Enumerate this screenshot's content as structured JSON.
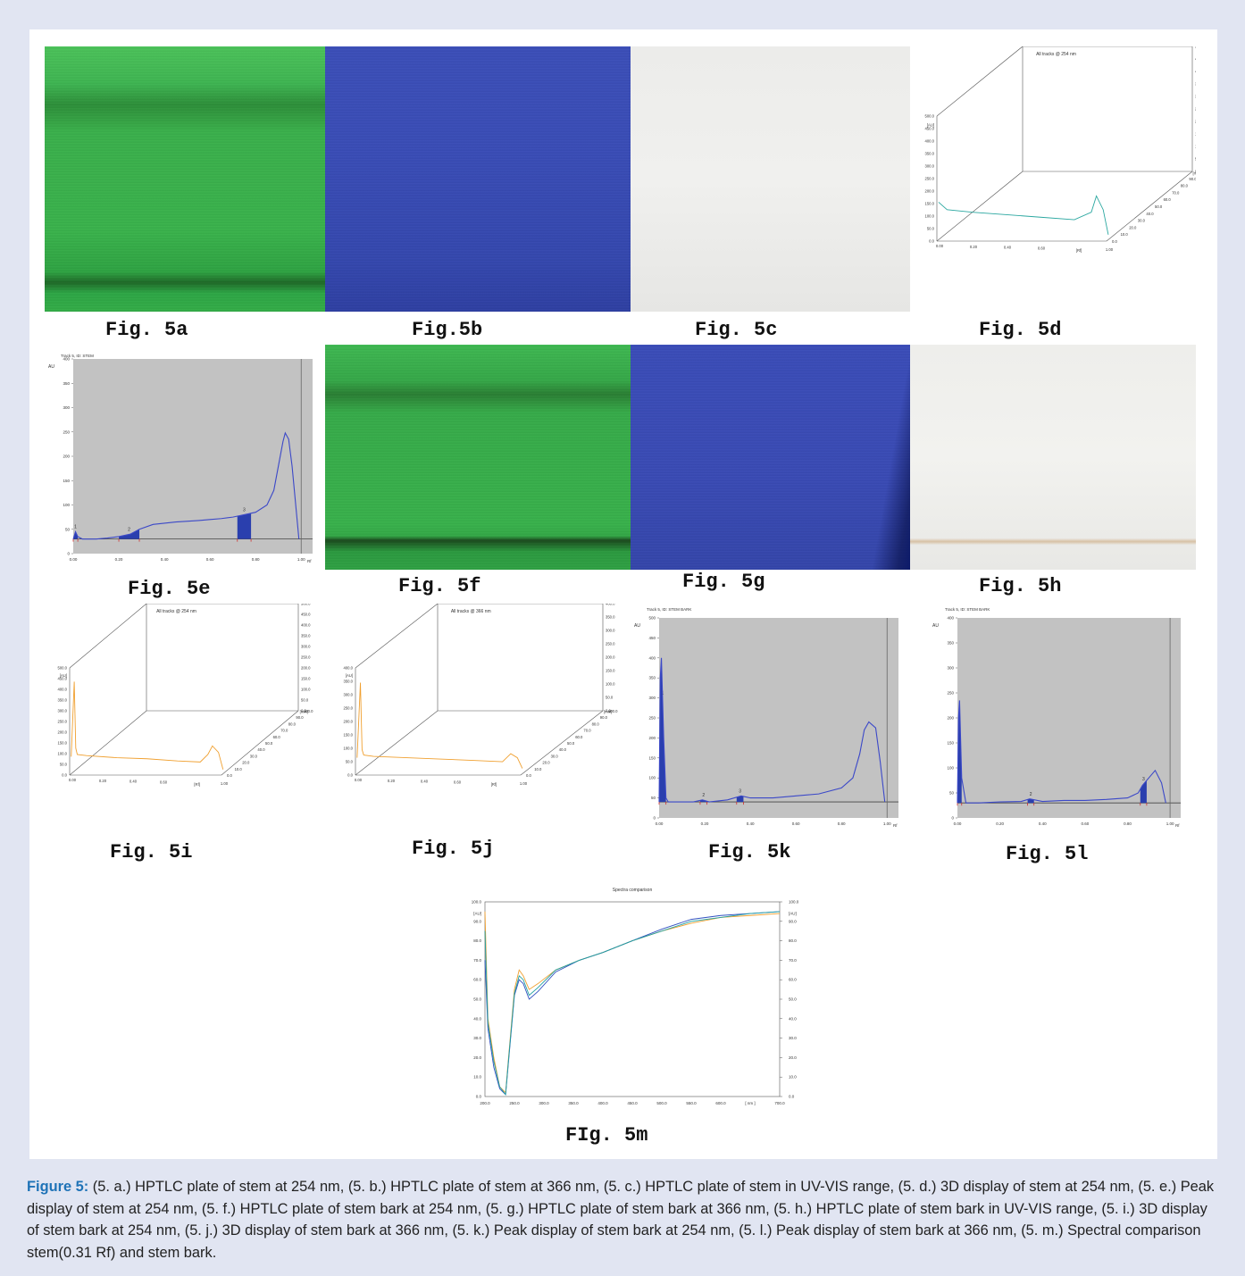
{
  "figure_labels": {
    "a": "Fig. 5a",
    "b": "Fig.5b",
    "c": "Fig. 5c",
    "d": "Fig. 5d",
    "e": "Fig. 5e",
    "f": "Fig. 5f",
    "g": "Fig. 5g",
    "h": "Fig. 5h",
    "i": "Fig. 5i",
    "j": "Fig. 5j",
    "k": "Fig. 5k",
    "l": "Fig. 5l",
    "m": "FIg. 5m"
  },
  "caption": {
    "label": "Figure 5:",
    "text": " (5. a.) HPTLC plate of stem at 254 nm, (5. b.) HPTLC plate of stem at 366 nm, (5. c.) HPTLC plate of stem in UV-VIS range, (5. d.) 3D display of stem at 254 nm, (5. e.) Peak display of stem at 254 nm, (5. f.) HPTLC plate of stem bark at 254 nm, (5. g.) HPTLC plate of stem bark at 366 nm, (5. h.) HPTLC plate of stem bark in UV-VIS range, (5. i.) 3D display of stem bark at 254 nm, (5. j.) 3D display of stem bark at 366 nm, (5. k.) Peak display of stem bark at 254 nm, (5. l.) Peak display of stem bark at 366 nm, (5. m.) Spectral comparison stem(0.31 Rf) and stem bark."
  },
  "chart_data": [
    {
      "id": "5d",
      "type": "line",
      "title": "All tracks @ 254 nm",
      "xlabel": "[Rf]",
      "ylabel": "[AU]",
      "zlabel": "[mm]",
      "x_ticks": [
        "0.00",
        "0.20",
        "0.40",
        "0.60",
        "1.00"
      ],
      "y_ticks": [
        "0.0",
        "50.0",
        "100.0",
        "150.0",
        "200.0",
        "250.0",
        "300.0",
        "350.0",
        "400.0",
        "450.0",
        "500.0"
      ],
      "z_ticks": [
        "0.0",
        "10.0",
        "20.0",
        "30.0",
        "40.0",
        "50.0",
        "60.0",
        "70.0",
        "80.0",
        "90.0",
        "100.0"
      ],
      "series": [
        {
          "color": "#2aa7a0",
          "x": [
            0.0,
            0.05,
            0.2,
            0.4,
            0.6,
            0.8,
            0.9,
            0.93,
            0.97,
            1.0
          ],
          "y": [
            150,
            120,
            110,
            100,
            90,
            80,
            110,
            175,
            120,
            20
          ]
        }
      ]
    },
    {
      "id": "5e",
      "type": "line",
      "title": "Track 5, ID: STEM",
      "xlabel": "Rf",
      "ylabel": "AU",
      "xlim": [
        0,
        1.05
      ],
      "ylim": [
        0,
        400
      ],
      "x_ticks": [
        "0.00",
        "0.20",
        "0.40",
        "0.60",
        "0.80",
        "1.00"
      ],
      "y_ticks": [
        "400",
        "350",
        "300",
        "250",
        "200",
        "150",
        "100",
        "50",
        "0"
      ],
      "peaks": [
        "1",
        "2",
        "3"
      ],
      "x": [
        0.0,
        0.01,
        0.02,
        0.04,
        0.1,
        0.15,
        0.2,
        0.25,
        0.29,
        0.35,
        0.45,
        0.55,
        0.6,
        0.65,
        0.7,
        0.75,
        0.8,
        0.85,
        0.88,
        0.9,
        0.92,
        0.93,
        0.945,
        0.96,
        0.98,
        0.99
      ],
      "y": [
        30,
        45,
        35,
        30,
        30,
        32,
        35,
        40,
        50,
        60,
        65,
        68,
        70,
        72,
        75,
        80,
        85,
        100,
        130,
        180,
        230,
        248,
        235,
        180,
        80,
        30
      ]
    },
    {
      "id": "5i",
      "type": "line",
      "title": "All tracks @ 254 nm",
      "xlabel": "[Rf]",
      "ylabel": "[AU]",
      "zlabel": "[mm]",
      "x_ticks": [
        "0.00",
        "0.20",
        "0.40",
        "0.60",
        "1.00"
      ],
      "y_ticks": [
        "0.0",
        "50.0",
        "100.0",
        "150.0",
        "200.0",
        "250.0",
        "300.0",
        "350.0",
        "400.0",
        "450.0",
        "500.0"
      ],
      "z_ticks": [
        "0.0",
        "10.0",
        "20.0",
        "30.0",
        "40.0",
        "50.0",
        "60.0",
        "70.0",
        "80.0",
        "90.0",
        "100.0"
      ],
      "series": [
        {
          "color": "#f0a030",
          "x": [
            0.0,
            0.02,
            0.03,
            0.04,
            0.1,
            0.3,
            0.5,
            0.7,
            0.85,
            0.9,
            0.93,
            0.97,
            1.0
          ],
          "y": [
            80,
            430,
            120,
            90,
            85,
            75,
            70,
            60,
            55,
            90,
            130,
            100,
            20
          ]
        }
      ]
    },
    {
      "id": "5j",
      "type": "line",
      "title": "All tracks @ 366 nm",
      "xlabel": "[Rf]",
      "ylabel": "[AU]",
      "zlabel": "[mm]",
      "x_ticks": [
        "0.00",
        "0.20",
        "0.40",
        "0.60",
        "1.00"
      ],
      "y_ticks": [
        "0.0",
        "50.0",
        "100.0",
        "150.0",
        "200.0",
        "250.0",
        "300.0",
        "350.0",
        "400.0"
      ],
      "z_ticks": [
        "0.0",
        "10.0",
        "20.0",
        "30.0",
        "40.0",
        "50.0",
        "60.0",
        "70.0",
        "80.0",
        "90.0",
        "100.0"
      ],
      "series": [
        {
          "color": "#f0a030",
          "x": [
            0.0,
            0.02,
            0.03,
            0.04,
            0.1,
            0.3,
            0.5,
            0.7,
            0.88,
            0.93,
            0.97,
            1.0
          ],
          "y": [
            60,
            340,
            90,
            70,
            65,
            60,
            55,
            50,
            45,
            75,
            60,
            20
          ]
        }
      ]
    },
    {
      "id": "5k",
      "type": "line",
      "title": "Track 5, ID: STEM BARK",
      "xlabel": "Rf",
      "ylabel": "AU",
      "xlim": [
        0,
        1.05
      ],
      "ylim": [
        0,
        500
      ],
      "x_ticks": [
        "0.00",
        "0.20",
        "0.40",
        "0.60",
        "0.80",
        "1.00"
      ],
      "y_ticks": [
        "500",
        "450",
        "400",
        "350",
        "300",
        "250",
        "200",
        "150",
        "100",
        "50",
        "0"
      ],
      "peaks": [
        "1",
        "2",
        "3"
      ],
      "x": [
        0.0,
        0.005,
        0.01,
        0.02,
        0.03,
        0.04,
        0.08,
        0.15,
        0.19,
        0.22,
        0.3,
        0.36,
        0.4,
        0.5,
        0.6,
        0.7,
        0.8,
        0.85,
        0.88,
        0.9,
        0.92,
        0.95,
        0.97,
        0.99
      ],
      "y": [
        40,
        350,
        400,
        200,
        50,
        40,
        40,
        40,
        45,
        40,
        45,
        55,
        50,
        50,
        55,
        60,
        75,
        100,
        160,
        220,
        240,
        225,
        140,
        40
      ]
    },
    {
      "id": "5l",
      "type": "line",
      "title": "Track 5, ID: STEM BARK",
      "xlabel": "Rf",
      "ylabel": "AU",
      "xlim": [
        0,
        1.05
      ],
      "ylim": [
        0,
        400
      ],
      "x_ticks": [
        "0.00",
        "0.20",
        "0.40",
        "0.60",
        "0.80",
        "1.00"
      ],
      "y_ticks": [
        "400",
        "350",
        "300",
        "250",
        "200",
        "150",
        "100",
        "50",
        "0"
      ],
      "peaks": [
        "2",
        "3"
      ],
      "x": [
        0.0,
        0.005,
        0.01,
        0.02,
        0.04,
        0.1,
        0.2,
        0.3,
        0.34,
        0.4,
        0.5,
        0.6,
        0.7,
        0.8,
        0.85,
        0.87,
        0.9,
        0.93,
        0.96,
        0.98
      ],
      "y": [
        30,
        200,
        235,
        80,
        30,
        30,
        32,
        33,
        38,
        33,
        35,
        35,
        37,
        40,
        50,
        65,
        80,
        95,
        70,
        30
      ]
    },
    {
      "id": "5m",
      "type": "line",
      "title": "Spectra comparison",
      "xlabel": "[nm]",
      "ylabel": "[AU]",
      "xlim": [
        200,
        700
      ],
      "ylim": [
        0,
        100
      ],
      "x_ticks": [
        "200.0",
        "250.0",
        "300.0",
        "350.0",
        "400.0",
        "450.0",
        "500.0",
        "550.0",
        "600.0",
        "[ nm ]",
        "700.0"
      ],
      "y_ticks": [
        "0.0",
        "10.0",
        "20.0",
        "30.0",
        "40.0",
        "50.0",
        "60.0",
        "70.0",
        "80.0",
        "90.0",
        "100.0"
      ],
      "series": [
        {
          "color": "#f0a030",
          "x": [
            200,
            205,
            215,
            225,
            235,
            240,
            250,
            258,
            265,
            275,
            290,
            320,
            360,
            400,
            450,
            500,
            550,
            600,
            650,
            700
          ],
          "y": [
            95,
            40,
            20,
            5,
            2,
            20,
            55,
            65,
            62,
            55,
            58,
            65,
            70,
            74,
            80,
            85,
            89,
            92,
            93,
            94
          ]
        },
        {
          "color": "#3050c0",
          "x": [
            200,
            205,
            215,
            225,
            235,
            240,
            250,
            258,
            265,
            275,
            290,
            320,
            360,
            400,
            450,
            500,
            550,
            600,
            650,
            700
          ],
          "y": [
            70,
            35,
            15,
            4,
            1,
            18,
            52,
            60,
            58,
            50,
            54,
            64,
            70,
            74,
            80,
            86,
            91,
            93,
            94,
            95
          ]
        },
        {
          "color": "#20a0a0",
          "x": [
            200,
            205,
            215,
            225,
            235,
            240,
            250,
            258,
            265,
            275,
            290,
            320,
            360,
            400,
            450,
            500,
            550,
            600,
            650,
            700
          ],
          "y": [
            85,
            38,
            18,
            5,
            1,
            19,
            53,
            62,
            60,
            52,
            56,
            65,
            70,
            74,
            80,
            85,
            90,
            92,
            94,
            95
          ]
        }
      ]
    }
  ]
}
